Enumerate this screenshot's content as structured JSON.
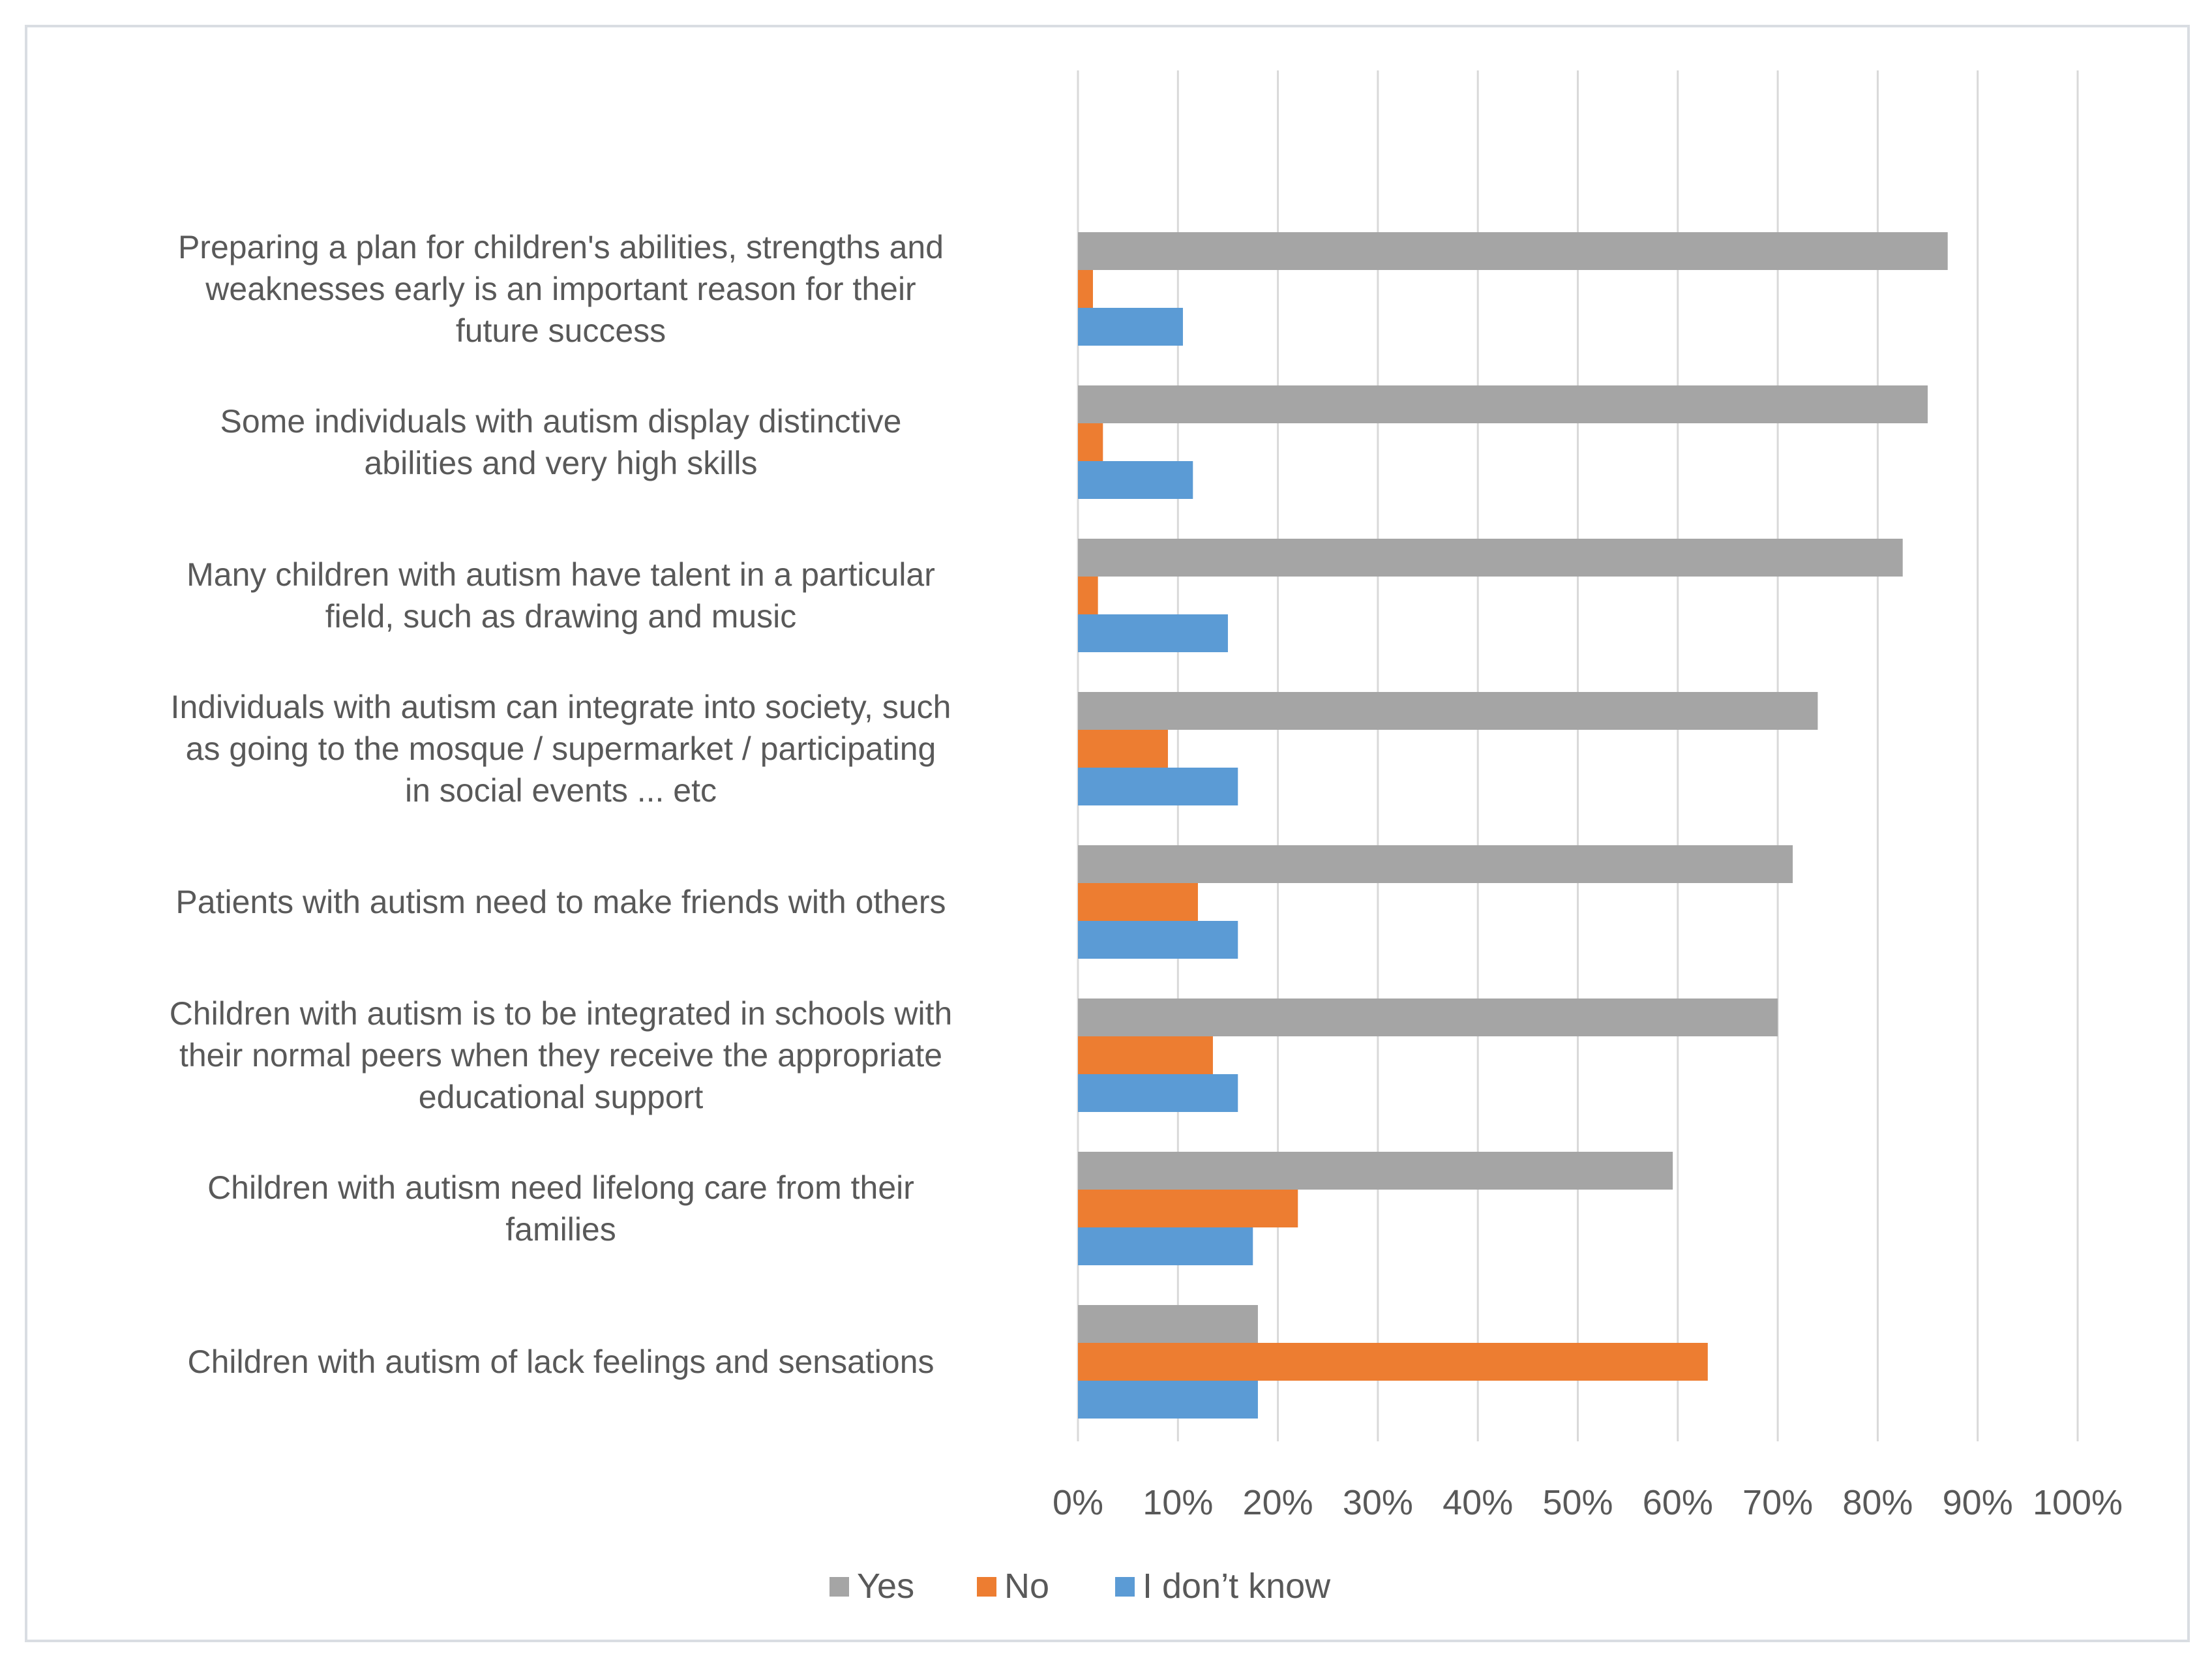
{
  "chart_data": {
    "type": "bar",
    "orientation": "horizontal",
    "title": "",
    "xlabel": "",
    "ylabel": "",
    "xlim": [
      0,
      100
    ],
    "grid": true,
    "legend_position": "bottom",
    "tick_labels": [
      "0%",
      "10%",
      "20%",
      "30%",
      "40%",
      "50%",
      "60%",
      "70%",
      "80%",
      "90%",
      "100%"
    ],
    "categories": [
      [
        "Preparing a plan for children's abilities, strengths and",
        "weaknesses early is an important reason for their",
        "future success"
      ],
      [
        "Some individuals with autism display distinctive",
        "abilities and very high skills"
      ],
      [
        "Many children with autism have talent in a particular",
        "field, such as drawing and music"
      ],
      [
        "Individuals with autism can integrate into society, such",
        "as going to the mosque / supermarket / participating",
        "in social events ... etc"
      ],
      [
        "Patients with autism need to make friends with others"
      ],
      [
        "Children with autism is to be integrated in schools with",
        "their normal peers when they receive the appropriate",
        "educational support"
      ],
      [
        "Children with autism need lifelong care from their",
        "families"
      ],
      [
        "Children with autism of lack feelings and sensations"
      ]
    ],
    "series": [
      {
        "name": "Yes",
        "color": "#a5a5a5",
        "values": [
          87,
          85,
          82.5,
          74,
          71.5,
          70,
          59.5,
          18
        ]
      },
      {
        "name": "No",
        "color": "#ed7d31",
        "values": [
          1.5,
          2.5,
          2,
          9,
          12,
          13.5,
          22,
          63
        ]
      },
      {
        "name": "I don’t know",
        "color": "#5b9bd5",
        "values": [
          10.5,
          11.5,
          15,
          16,
          16,
          16,
          17.5,
          18
        ]
      }
    ]
  }
}
